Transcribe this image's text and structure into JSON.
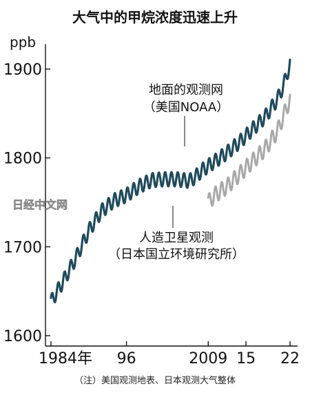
{
  "title": "大气中的甲烷浓度迅速上升",
  "note": "（注）美国观测地表、日本观测大气整体",
  "watermark": "日经中文网",
  "chart_data": {
    "type": "line",
    "ylabel": "ppb",
    "xlim": [
      1984,
      2022
    ],
    "ylim": [
      1600,
      1920
    ],
    "y_ticks": [
      {
        "value": 1600,
        "label": "1600"
      },
      {
        "value": 1700,
        "label": "1700"
      },
      {
        "value": 1800,
        "label": "1800"
      },
      {
        "value": 1900,
        "label": "1900"
      }
    ],
    "x_ticks": [
      {
        "value": 1984,
        "label": "1984年"
      },
      {
        "value": 1996,
        "label": "96"
      },
      {
        "value": 2009,
        "label": "2009"
      },
      {
        "value": 2015,
        "label": "15"
      },
      {
        "value": 2022,
        "label": "22"
      }
    ],
    "series": [
      {
        "name": "地面的观测网",
        "sublabel": "（美国NOAA）",
        "color": "#1f4a5c",
        "seasonal_amplitude": 8,
        "x": [
          1984,
          1986,
          1988,
          1990,
          1992,
          1994,
          1996,
          1998,
          2000,
          2002,
          2004,
          2006,
          2007,
          2008,
          2010,
          2012,
          2014,
          2016,
          2018,
          2020,
          2021,
          2022
        ],
        "values": [
          1638,
          1662,
          1688,
          1718,
          1740,
          1752,
          1758,
          1768,
          1775,
          1776,
          1776,
          1774,
          1779,
          1786,
          1796,
          1806,
          1818,
          1832,
          1846,
          1866,
          1882,
          1906
        ]
      },
      {
        "name": "人造卫星观测",
        "sublabel": "（日本国立环境研究所）",
        "color": "#a8a8a8",
        "seasonal_amplitude": 9,
        "x": [
          2009,
          2010,
          2012,
          2014,
          2016,
          2018,
          2020,
          2021,
          2022
        ],
        "values": [
          1750,
          1758,
          1768,
          1782,
          1796,
          1810,
          1830,
          1848,
          1866
        ]
      }
    ]
  }
}
